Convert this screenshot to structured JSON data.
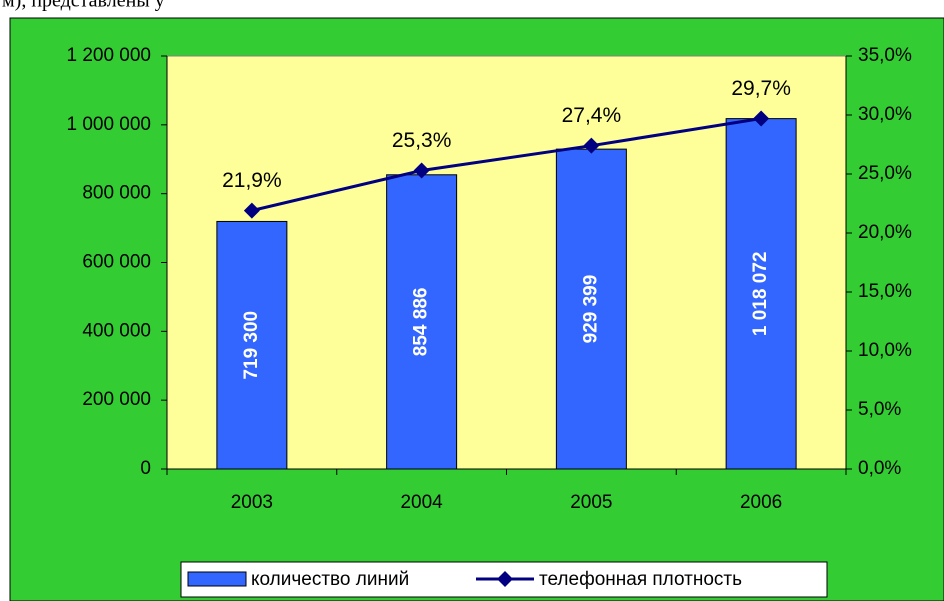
{
  "caption": "м), представлены у",
  "chart_data": {
    "type": "bar_line",
    "categories": [
      "2003",
      "2004",
      "2005",
      "2006"
    ],
    "series": [
      {
        "name": "количество линий",
        "type": "bar",
        "color": "#3366ff",
        "values": [
          719300,
          854886,
          929399,
          1018072
        ],
        "value_labels": [
          "719 300",
          "854 886",
          "929 399",
          "1 018 072"
        ]
      },
      {
        "name": "телефонная плотность",
        "type": "line",
        "axis": "y2",
        "color": "#000080",
        "values": [
          21.9,
          25.3,
          27.4,
          29.7
        ],
        "value_labels": [
          "21,9%",
          "25,3%",
          "27,4%",
          "29,7%"
        ]
      }
    ],
    "ylim": [
      0,
      1200000
    ],
    "yticks": [
      0,
      {
        "value": 200000,
        "label": "200 000"
      },
      {
        "value": 400000,
        "label": "400 000"
      },
      {
        "value": 600000,
        "label": "600 000"
      },
      {
        "value": 800000,
        "label": "800 000"
      },
      {
        "value": 1000000,
        "label": "1 000 000"
      },
      {
        "value": 1200000,
        "label": "1 200 000"
      }
    ],
    "y2lim": [
      0,
      35
    ],
    "y2ticks": [
      {
        "value": 0,
        "label": "0,0%"
      },
      {
        "value": 5,
        "label": "5,0%"
      },
      {
        "value": 10,
        "label": "10,0%"
      },
      {
        "value": 15,
        "label": "15,0%"
      },
      {
        "value": 20,
        "label": "20,0%"
      },
      {
        "value": 25,
        "label": "25,0%"
      },
      {
        "value": 30,
        "label": "30,0%"
      },
      {
        "value": 35,
        "label": "35,0%"
      }
    ],
    "plot_background": "#ffff99",
    "background": "#33cc33",
    "legend": "bottom"
  }
}
